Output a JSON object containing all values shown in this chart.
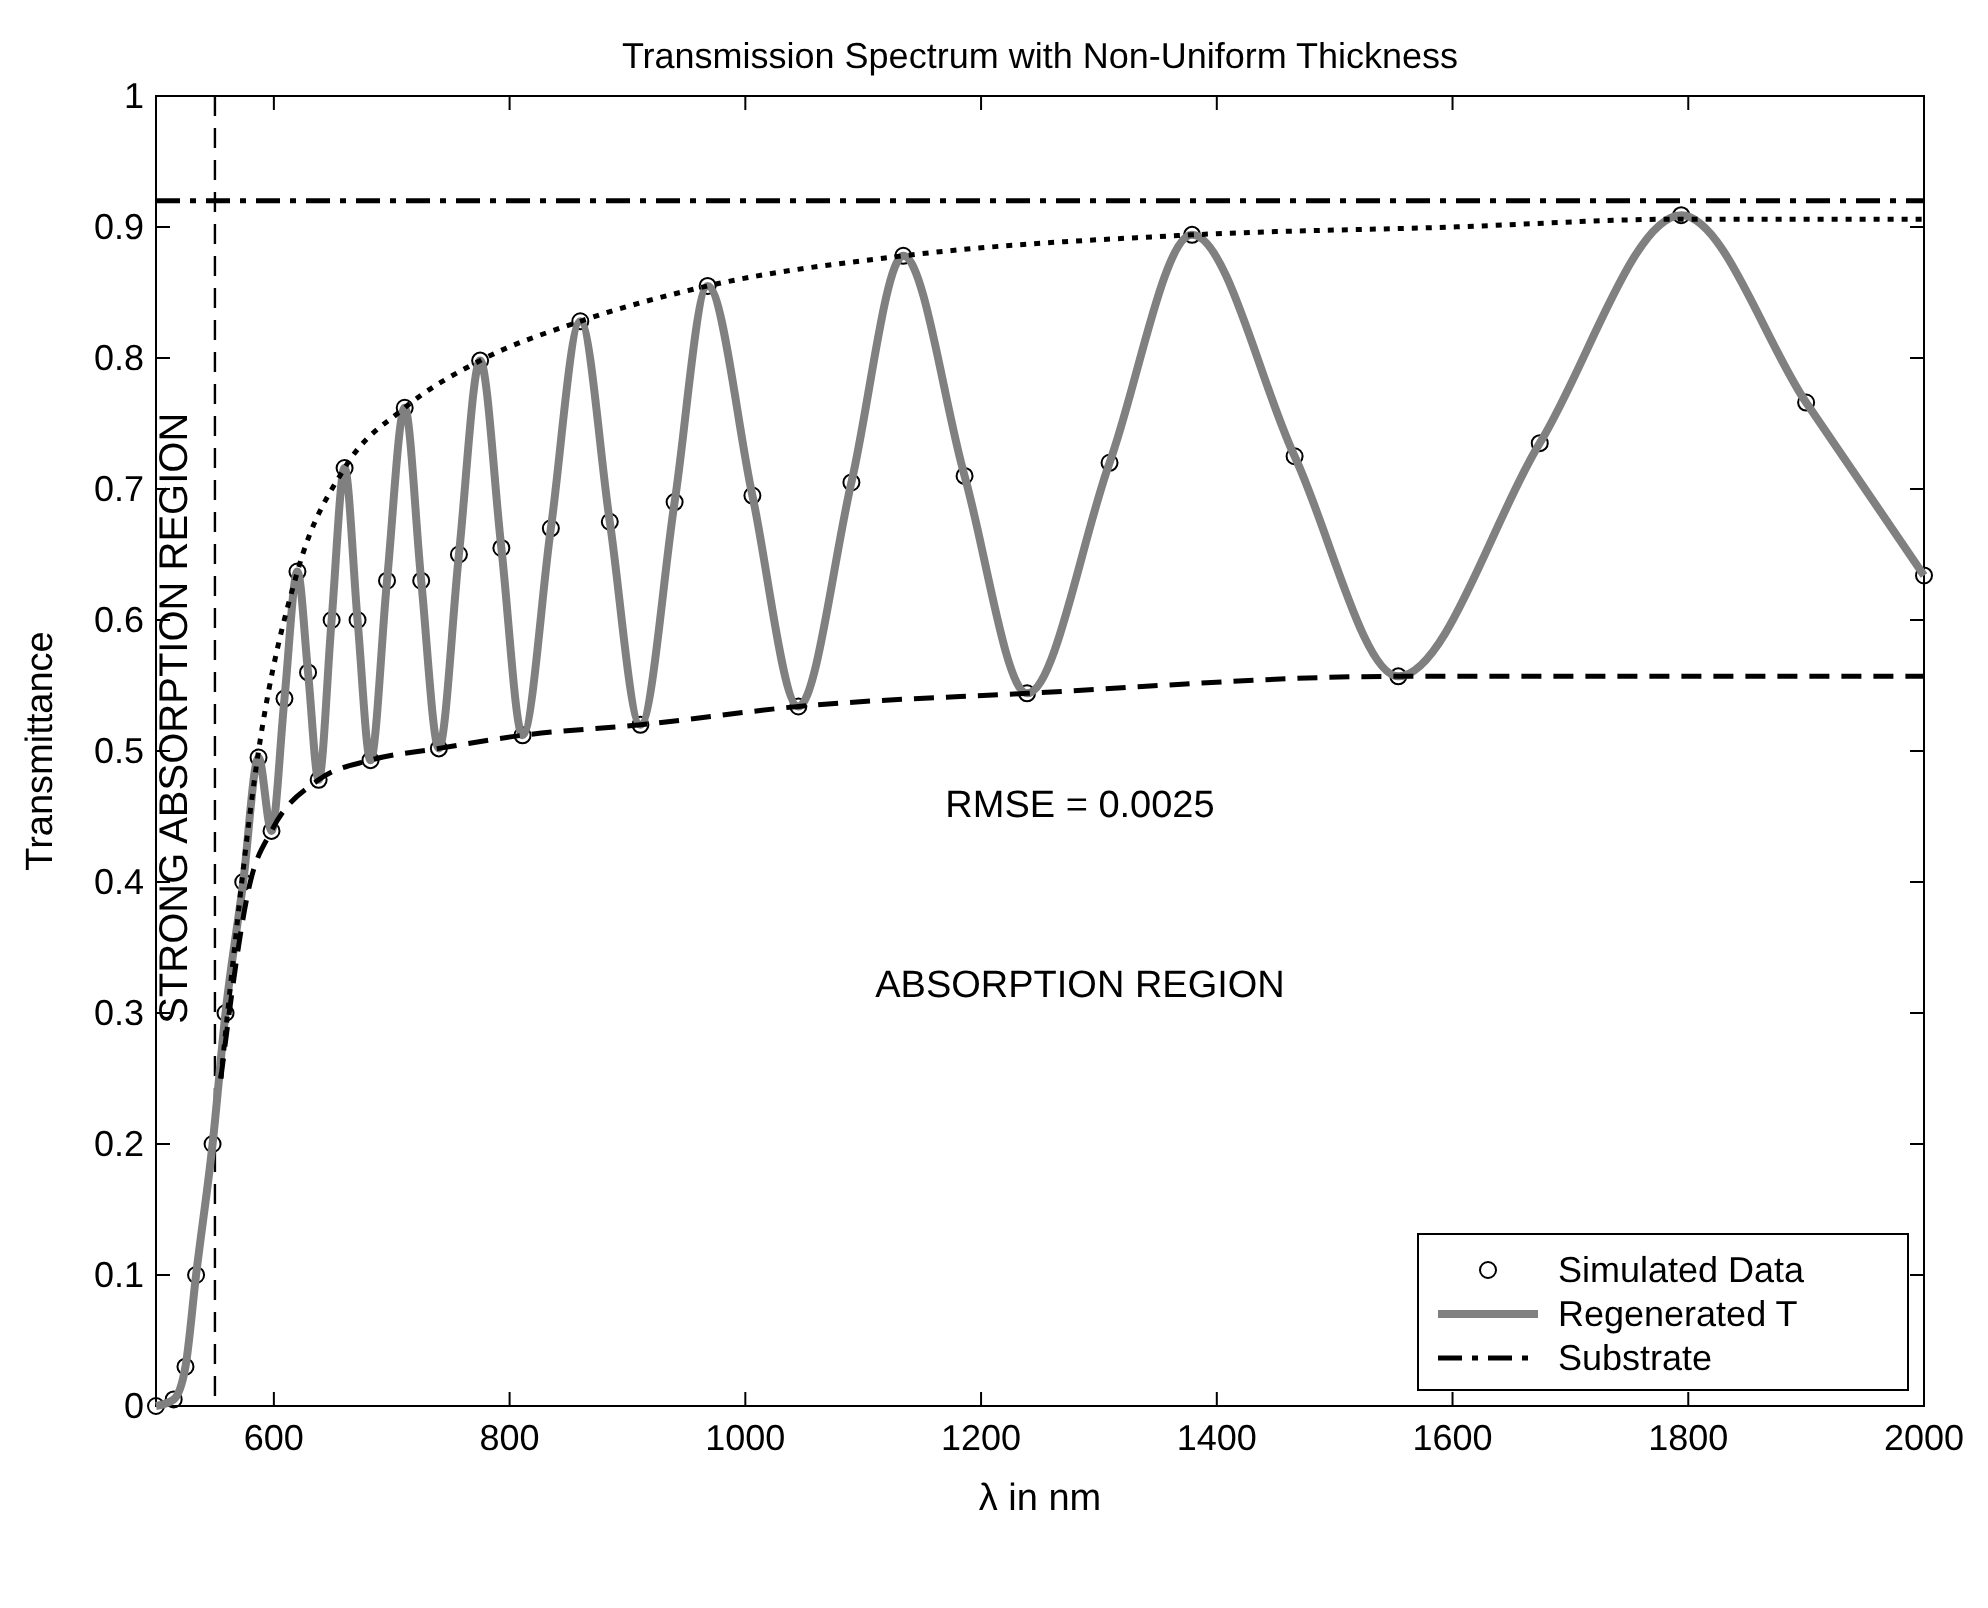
{
  "chart_data": {
    "type": "line",
    "title": "Transmission Spectrum with Non-Uniform Thickness",
    "xlabel": "λ in nm",
    "ylabel": "Transmittance",
    "xlim": [
      500,
      2000
    ],
    "xticks": [
      600,
      800,
      1000,
      1200,
      1400,
      1600,
      1800,
      2000
    ],
    "ylim": [
      0,
      1
    ],
    "yticks": [
      0,
      0.1,
      0.2,
      0.3,
      0.4,
      0.5,
      0.6,
      0.7,
      0.8,
      0.9,
      1
    ],
    "grid": false,
    "legend": "bottom right",
    "series": [
      {
        "name": "Simulated Data",
        "type": "scatter",
        "marker": "circle",
        "color": "#000000",
        "x": [
          500,
          515,
          525,
          534,
          548,
          559,
          574,
          587,
          598,
          609,
          620,
          629,
          638,
          649,
          660,
          671,
          682,
          696,
          711,
          725,
          740,
          757,
          775,
          793,
          811,
          835,
          860,
          885,
          911,
          940,
          968,
          1006,
          1045,
          1090,
          1134,
          1186,
          1239,
          1309,
          1379,
          1466,
          1554,
          1674,
          1794,
          1900,
          2000
        ],
        "values": [
          0,
          0.005,
          0.03,
          0.1,
          0.2,
          0.3,
          0.4,
          0.495,
          0.439,
          0.54,
          0.637,
          0.56,
          0.478,
          0.6,
          0.716,
          0.6,
          0.493,
          0.63,
          0.762,
          0.63,
          0.502,
          0.65,
          0.798,
          0.655,
          0.512,
          0.67,
          0.828,
          0.675,
          0.52,
          0.69,
          0.855,
          0.695,
          0.534,
          0.705,
          0.878,
          0.71,
          0.544,
          0.72,
          0.894,
          0.725,
          0.557,
          0.735,
          0.909,
          0.766,
          0.634
        ]
      },
      {
        "name": "Regenerated T",
        "type": "line",
        "line_style": "solid",
        "color": "#808080",
        "x": [
          500,
          515,
          525,
          534,
          548,
          559,
          574,
          587,
          598,
          609,
          620,
          629,
          638,
          649,
          660,
          671,
          682,
          696,
          711,
          725,
          740,
          757,
          775,
          793,
          811,
          835,
          860,
          885,
          911,
          940,
          968,
          1006,
          1045,
          1090,
          1134,
          1186,
          1239,
          1309,
          1379,
          1466,
          1554,
          1674,
          1794,
          1900,
          2000
        ],
        "values": [
          0,
          0.005,
          0.03,
          0.1,
          0.2,
          0.3,
          0.4,
          0.495,
          0.439,
          0.54,
          0.637,
          0.56,
          0.478,
          0.6,
          0.716,
          0.6,
          0.493,
          0.63,
          0.762,
          0.63,
          0.502,
          0.65,
          0.798,
          0.655,
          0.512,
          0.67,
          0.828,
          0.675,
          0.52,
          0.69,
          0.855,
          0.695,
          0.534,
          0.705,
          0.878,
          0.71,
          0.544,
          0.72,
          0.894,
          0.725,
          0.557,
          0.735,
          0.909,
          0.766,
          0.634
        ]
      },
      {
        "name": "Substrate",
        "type": "line",
        "line_style": "dashdot",
        "color": "#000000",
        "x": [
          500,
          2000
        ],
        "values": [
          0.92,
          0.92
        ]
      },
      {
        "line_style": "dotted",
        "color": "#000000",
        "x": [
          555,
          587,
          620,
          660,
          711,
          775,
          860,
          968,
          1134,
          1379,
          1600,
          1794,
          2000
        ],
        "values": [
          0.25,
          0.5,
          0.637,
          0.716,
          0.762,
          0.798,
          0.828,
          0.855,
          0.878,
          0.894,
          0.9,
          0.906,
          0.906
        ]
      },
      {
        "line_style": "dashed",
        "color": "#000000",
        "x": [
          555,
          580,
          598,
          638,
          682,
          740,
          811,
          911,
          1045,
          1239,
          1554,
          2000
        ],
        "values": [
          0.25,
          0.4,
          0.439,
          0.478,
          0.493,
          0.502,
          0.512,
          0.52,
          0.534,
          0.544,
          0.557,
          0.557
        ]
      }
    ],
    "ref_lines": [
      {
        "axis": "x",
        "value": 550,
        "line_style": "dashed",
        "color": "#000000"
      }
    ],
    "annotations": [
      "STRONG ABSORPTION REGION",
      "RMSE = 0.0025",
      "ABSORPTION REGION"
    ]
  }
}
